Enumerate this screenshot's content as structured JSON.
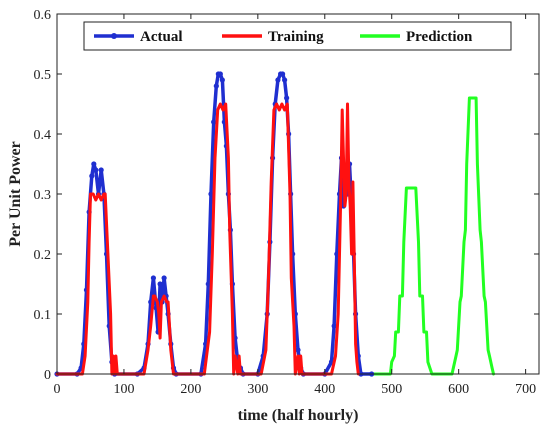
{
  "chart_data": {
    "type": "line",
    "title": "",
    "xlabel": "time (half hourly)",
    "ylabel": "Per Unit Power",
    "xlim": [
      0,
      720
    ],
    "ylim": [
      0,
      0.6
    ],
    "xticks": [
      0,
      100,
      200,
      300,
      400,
      500,
      600,
      700
    ],
    "yticks": [
      0,
      0.1,
      0.2,
      0.3,
      0.4,
      0.5,
      0.6
    ],
    "xtick_labels": [
      "0",
      "100",
      "200",
      "300",
      "400",
      "500",
      "600",
      "700"
    ],
    "ytick_labels": [
      "0",
      "0.1",
      "0.2",
      "0.3",
      "0.4",
      "0.5",
      "0.6"
    ],
    "grid": false,
    "legend_position": "top",
    "series": [
      {
        "name": "Actual",
        "color": "#1f2fd0",
        "marker": "circle",
        "x": [
          0,
          30,
          36,
          40,
          44,
          48,
          52,
          55,
          58,
          62,
          66,
          70,
          74,
          78,
          82,
          86,
          120,
          130,
          136,
          140,
          144,
          148,
          151,
          154,
          157,
          160,
          163,
          166,
          170,
          174,
          178,
          215,
          222,
          226,
          230,
          234,
          238,
          241,
          244,
          247,
          250,
          253,
          256,
          259,
          262,
          266,
          270,
          274,
          278,
          300,
          308,
          314,
          318,
          322,
          326,
          330,
          334,
          337,
          340,
          343,
          346,
          349,
          352,
          356,
          360,
          364,
          368,
          400,
          410,
          414,
          418,
          422,
          425,
          428,
          431,
          434,
          437,
          440,
          443,
          446,
          450,
          454,
          470
        ],
        "y": [
          0,
          0,
          0.01,
          0.05,
          0.14,
          0.27,
          0.33,
          0.35,
          0.34,
          0.3,
          0.34,
          0.3,
          0.2,
          0.08,
          0.02,
          0,
          0,
          0.01,
          0.05,
          0.12,
          0.16,
          0.11,
          0.07,
          0.15,
          0.12,
          0.16,
          0.13,
          0.1,
          0.05,
          0.01,
          0,
          0,
          0.05,
          0.15,
          0.3,
          0.42,
          0.48,
          0.5,
          0.5,
          0.49,
          0.42,
          0.38,
          0.3,
          0.24,
          0.15,
          0.06,
          0.02,
          0.01,
          0,
          0,
          0.03,
          0.1,
          0.22,
          0.36,
          0.45,
          0.49,
          0.5,
          0.5,
          0.49,
          0.46,
          0.4,
          0.3,
          0.2,
          0.1,
          0.04,
          0.01,
          0,
          0,
          0.02,
          0.08,
          0.2,
          0.3,
          0.36,
          0.28,
          0.33,
          0.3,
          0.35,
          0.28,
          0.2,
          0.1,
          0.03,
          0,
          0
        ]
      },
      {
        "name": "Training",
        "color": "#ff1010",
        "marker": "none",
        "x": [
          0,
          38,
          42,
          46,
          48,
          50,
          54,
          58,
          62,
          66,
          70,
          72,
          76,
          80,
          82,
          84,
          86,
          88,
          90,
          92,
          130,
          136,
          140,
          144,
          146,
          150,
          152,
          154,
          156,
          160,
          164,
          166,
          168,
          170,
          174,
          220,
          228,
          232,
          236,
          240,
          244,
          248,
          252,
          256,
          258,
          262,
          264,
          266,
          270,
          272,
          274,
          276,
          305,
          312,
          316,
          320,
          324,
          328,
          332,
          336,
          340,
          344,
          348,
          350,
          354,
          356,
          360,
          362,
          364,
          366,
          368,
          410,
          416,
          420,
          422,
          424,
          426,
          428,
          430,
          432,
          434,
          436,
          438,
          440,
          442,
          444,
          446,
          448,
          450
        ],
        "y": [
          0,
          0,
          0.03,
          0.12,
          0.22,
          0.3,
          0.3,
          0.29,
          0.3,
          0.29,
          0.3,
          0.3,
          0.2,
          0.1,
          0.0,
          0.03,
          0.0,
          0.03,
          0.0,
          0,
          0,
          0.04,
          0.08,
          0.13,
          0.13,
          0.12,
          0.1,
          0.06,
          0.12,
          0.13,
          0.12,
          0.12,
          0.08,
          0.04,
          0,
          0,
          0.07,
          0.2,
          0.36,
          0.44,
          0.45,
          0.44,
          0.45,
          0.36,
          0.24,
          0.1,
          0.0,
          0.03,
          0.0,
          0.03,
          0.0,
          0,
          0,
          0.04,
          0.16,
          0.32,
          0.44,
          0.45,
          0.44,
          0.45,
          0.44,
          0.45,
          0.3,
          0.16,
          0.08,
          0.0,
          0.03,
          0.0,
          0.03,
          0.0,
          0,
          0,
          0.03,
          0.1,
          0.2,
          0.3,
          0.44,
          0.36,
          0.28,
          0.3,
          0.45,
          0.32,
          0.28,
          0.2,
          0.32,
          0.2,
          0.05,
          0.02,
          0
        ],
        "truncated_note": ""
      },
      {
        "name": "Prediction",
        "color": "#22ff22",
        "marker": "none",
        "x": [
          470,
          498,
          500,
          504,
          506,
          510,
          512,
          516,
          518,
          522,
          536,
          540,
          542,
          546,
          548,
          552,
          554,
          560,
          590,
          596,
          598,
          602,
          604,
          608,
          610,
          612,
          616,
          626,
          628,
          632,
          634,
          638,
          640,
          644,
          646,
          650,
          652
        ],
        "y": [
          0,
          0,
          0.02,
          0.03,
          0.07,
          0.07,
          0.13,
          0.13,
          0.22,
          0.31,
          0.31,
          0.22,
          0.13,
          0.13,
          0.07,
          0.07,
          0.02,
          0,
          0,
          0.03,
          0.04,
          0.12,
          0.13,
          0.22,
          0.24,
          0.35,
          0.46,
          0.46,
          0.35,
          0.24,
          0.22,
          0.13,
          0.12,
          0.04,
          0.03,
          0.01,
          0
        ]
      }
    ]
  }
}
